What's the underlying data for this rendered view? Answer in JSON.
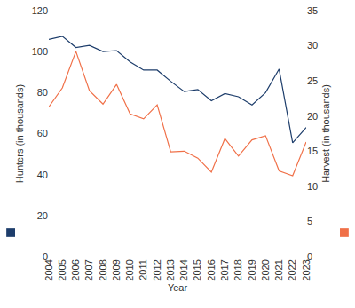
{
  "chart_data": {
    "type": "line",
    "xlabel": "Year",
    "ylabel": "Hunters (in thousands)",
    "y2label": "Harvest (in thousands)",
    "categories": [
      "2004",
      "2005",
      "2006",
      "2007",
      "2008",
      "2009",
      "2010",
      "2011",
      "2012",
      "2013",
      "2014",
      "2015",
      "2016",
      "2017",
      "2018",
      "2019",
      "2020",
      "2021",
      "2022",
      "2023"
    ],
    "series": [
      {
        "color": "#1d3d6b",
        "values": [
          106,
          107.5,
          102,
          103,
          100,
          100.5,
          95,
          91,
          91,
          85.5,
          80.5,
          81.5,
          76,
          79.5,
          78,
          74,
          80,
          91.5,
          55.5,
          63
        ]
      },
      {
        "color": "#f07048",
        "axis": "y2",
        "values": [
          21.3,
          24,
          29.2,
          23.6,
          21.7,
          24.5,
          20.3,
          19.6,
          21.6,
          14.9,
          15,
          14,
          12,
          16.8,
          14.3,
          16.6,
          17.2,
          12.2,
          11.5,
          16.3
        ]
      }
    ],
    "ylim": [
      0,
      120
    ],
    "yticks": [
      0,
      20,
      40,
      60,
      80,
      100,
      120
    ],
    "y2lim": [
      0,
      35
    ],
    "y2ticks": [
      0,
      5,
      10,
      15,
      20,
      25,
      30,
      35
    ],
    "grid": false
  }
}
